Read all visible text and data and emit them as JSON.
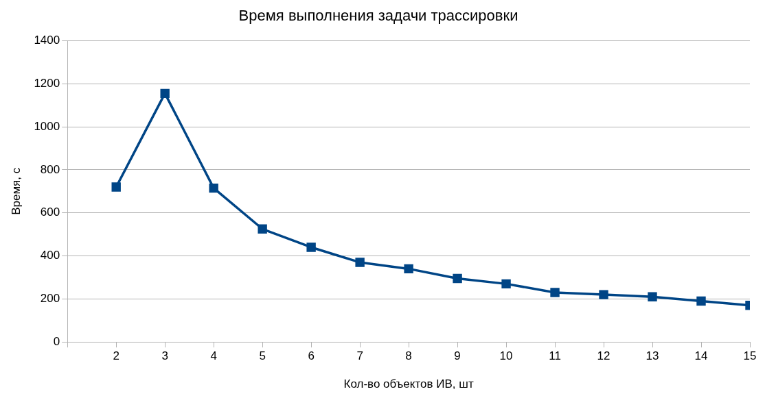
{
  "chart_data": {
    "type": "line",
    "title": "Время выполнения задачи трассировки",
    "xlabel": "Кол-во объектов ИВ, шт",
    "ylabel": "Время, с",
    "x": [
      2,
      3,
      4,
      5,
      6,
      7,
      8,
      9,
      10,
      11,
      12,
      13,
      14,
      15
    ],
    "series": [
      {
        "color": "#004586",
        "values": [
          720,
          1155,
          715,
          525,
          440,
          370,
          340,
          295,
          270,
          230,
          220,
          210,
          190,
          170
        ]
      }
    ],
    "xlim": [
      1,
      15
    ],
    "xticks": [
      {
        "value": 1,
        "label": null
      },
      2,
      3,
      4,
      5,
      6,
      7,
      8,
      9,
      10,
      11,
      12,
      13,
      14,
      15
    ],
    "ylim": [
      0,
      1400
    ],
    "yticks": [
      0,
      200,
      400,
      600,
      800,
      1000,
      1200,
      1400
    ],
    "grid": "y",
    "legend": false,
    "marker": "square",
    "line_style": "solid"
  }
}
